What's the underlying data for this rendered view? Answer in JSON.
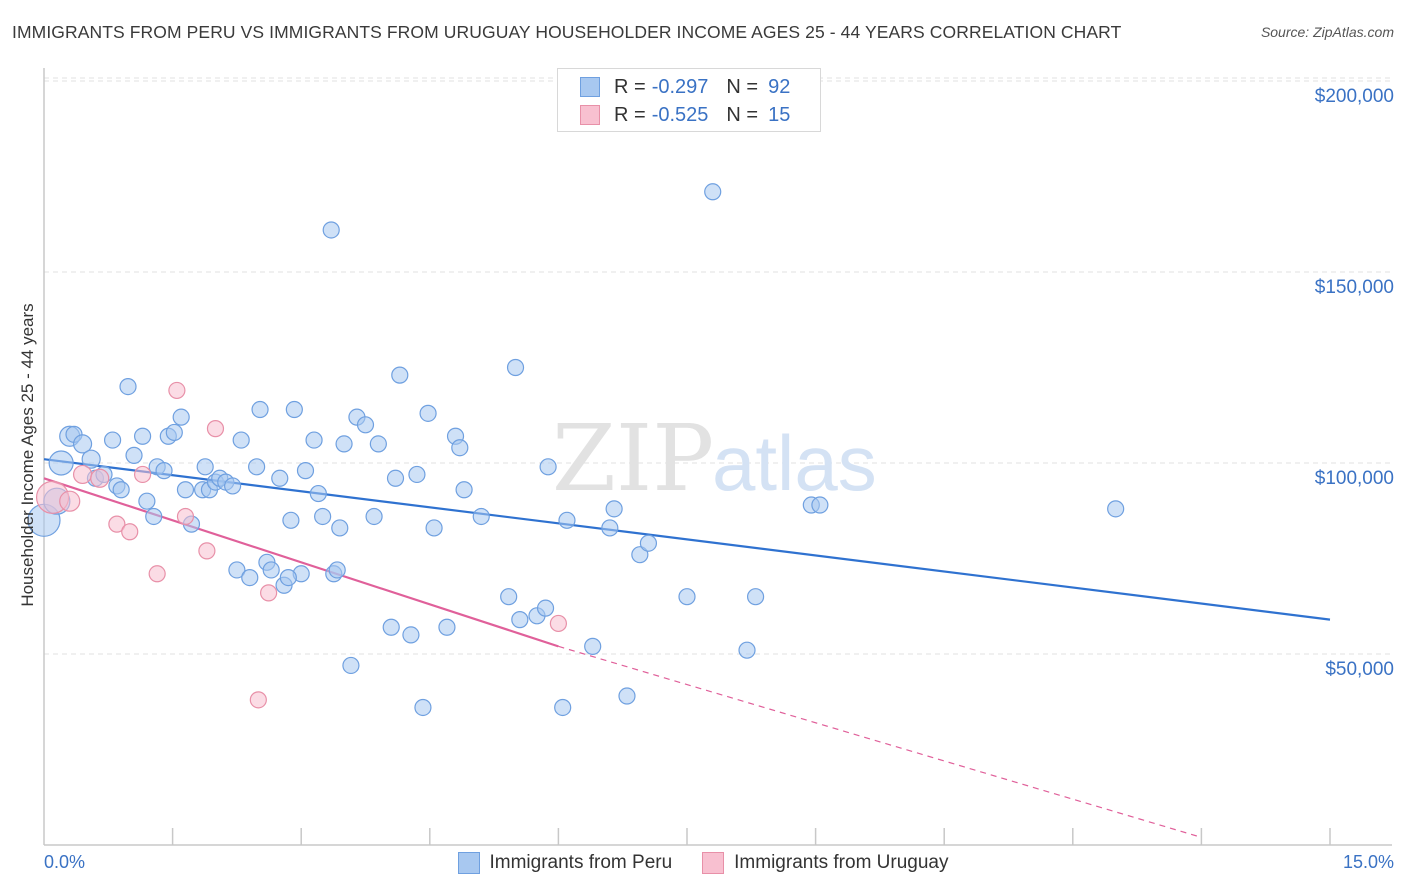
{
  "header": {
    "title": "IMMIGRANTS FROM PERU VS IMMIGRANTS FROM URUGUAY HOUSEHOLDER INCOME AGES 25 - 44 YEARS CORRELATION CHART",
    "source": "Source: ZipAtlas.com"
  },
  "watermark": {
    "zip": "ZIP",
    "atlas": "atlas"
  },
  "legend_top": {
    "rows": [
      {
        "r_label": "R =",
        "r_value": "-0.297",
        "n_label": "N =",
        "n_value": "92",
        "color": "#a8c8f0",
        "border": "#6fa0e0"
      },
      {
        "r_label": "R =",
        "r_value": "-0.525",
        "n_label": "N =",
        "n_value": "15",
        "color": "#f8c0d0",
        "border": "#e890a8"
      }
    ]
  },
  "legend_bottom": {
    "items": [
      {
        "label": "Immigrants from Peru",
        "color": "#a8c8f0",
        "border": "#6fa0e0"
      },
      {
        "label": "Immigrants from Uruguay",
        "color": "#f8c0d0",
        "border": "#e890a8"
      }
    ]
  },
  "chart_data": {
    "type": "scatter",
    "title": "IMMIGRANTS FROM PERU VS IMMIGRANTS FROM URUGUAY HOUSEHOLDER INCOME AGES 25 - 44 YEARS CORRELATION CHART",
    "xlabel": "",
    "ylabel": "Householder Income Ages 25 - 44 years",
    "xlim": [
      0,
      15
    ],
    "ylim": [
      0,
      205000
    ],
    "x_tick_labels": [
      "0.0%",
      "15.0%"
    ],
    "y_ticks": [
      50000,
      100000,
      150000,
      200000
    ],
    "y_tick_labels": [
      "$50,000",
      "$100,000",
      "$150,000",
      "$200,000"
    ],
    "grid": true,
    "series": [
      {
        "name": "Immigrants from Peru",
        "color": "#a8c8f0",
        "stroke": "#6fa0e0",
        "trend_color": "#2f72d0",
        "trend": {
          "x0": 0.0,
          "y0": 101000,
          "x1": 15.0,
          "y1": 59000
        },
        "points": [
          {
            "x": 0.0,
            "y": 85000,
            "s": 16
          },
          {
            "x": 0.15,
            "y": 90000,
            "s": 13
          },
          {
            "x": 0.2,
            "y": 100000,
            "s": 12
          },
          {
            "x": 0.3,
            "y": 107000,
            "s": 10
          },
          {
            "x": 0.35,
            "y": 107500,
            "s": 8
          },
          {
            "x": 0.45,
            "y": 105000,
            "s": 9
          },
          {
            "x": 0.55,
            "y": 101000,
            "s": 9
          },
          {
            "x": 0.6,
            "y": 96000,
            "s": 8
          },
          {
            "x": 0.7,
            "y": 97000,
            "s": 8
          },
          {
            "x": 0.8,
            "y": 106000,
            "s": 8
          },
          {
            "x": 0.85,
            "y": 94000,
            "s": 8
          },
          {
            "x": 0.9,
            "y": 93000,
            "s": 8
          },
          {
            "x": 0.98,
            "y": 120000,
            "s": 8
          },
          {
            "x": 1.05,
            "y": 102000,
            "s": 8
          },
          {
            "x": 1.15,
            "y": 107000,
            "s": 8
          },
          {
            "x": 1.2,
            "y": 90000,
            "s": 8
          },
          {
            "x": 1.28,
            "y": 86000,
            "s": 8
          },
          {
            "x": 1.32,
            "y": 99000,
            "s": 8
          },
          {
            "x": 1.4,
            "y": 98000,
            "s": 8
          },
          {
            "x": 1.45,
            "y": 107000,
            "s": 8
          },
          {
            "x": 1.52,
            "y": 108000,
            "s": 8
          },
          {
            "x": 1.6,
            "y": 112000,
            "s": 8
          },
          {
            "x": 1.65,
            "y": 93000,
            "s": 8
          },
          {
            "x": 1.72,
            "y": 84000,
            "s": 8
          },
          {
            "x": 1.85,
            "y": 93000,
            "s": 8
          },
          {
            "x": 1.88,
            "y": 99000,
            "s": 8
          },
          {
            "x": 1.93,
            "y": 93000,
            "s": 8
          },
          {
            "x": 2.0,
            "y": 95000,
            "s": 8
          },
          {
            "x": 2.05,
            "y": 96000,
            "s": 8
          },
          {
            "x": 2.12,
            "y": 95000,
            "s": 8
          },
          {
            "x": 2.2,
            "y": 94000,
            "s": 8
          },
          {
            "x": 2.25,
            "y": 72000,
            "s": 8
          },
          {
            "x": 2.3,
            "y": 106000,
            "s": 8
          },
          {
            "x": 2.4,
            "y": 70000,
            "s": 8
          },
          {
            "x": 2.48,
            "y": 99000,
            "s": 8
          },
          {
            "x": 2.52,
            "y": 114000,
            "s": 8
          },
          {
            "x": 2.6,
            "y": 74000,
            "s": 8
          },
          {
            "x": 2.65,
            "y": 72000,
            "s": 8
          },
          {
            "x": 2.75,
            "y": 96000,
            "s": 8
          },
          {
            "x": 2.8,
            "y": 68000,
            "s": 8
          },
          {
            "x": 2.88,
            "y": 85000,
            "s": 8
          },
          {
            "x": 2.92,
            "y": 114000,
            "s": 8
          },
          {
            "x": 3.0,
            "y": 71000,
            "s": 8
          },
          {
            "x": 3.05,
            "y": 98000,
            "s": 8
          },
          {
            "x": 3.15,
            "y": 106000,
            "s": 8
          },
          {
            "x": 3.2,
            "y": 92000,
            "s": 8
          },
          {
            "x": 3.25,
            "y": 86000,
            "s": 8
          },
          {
            "x": 3.35,
            "y": 161000,
            "s": 8
          },
          {
            "x": 3.38,
            "y": 71000,
            "s": 8
          },
          {
            "x": 3.45,
            "y": 83000,
            "s": 8
          },
          {
            "x": 3.5,
            "y": 105000,
            "s": 8
          },
          {
            "x": 3.58,
            "y": 47000,
            "s": 8
          },
          {
            "x": 3.65,
            "y": 112000,
            "s": 8
          },
          {
            "x": 3.75,
            "y": 110000,
            "s": 8
          },
          {
            "x": 3.85,
            "y": 86000,
            "s": 8
          },
          {
            "x": 3.9,
            "y": 105000,
            "s": 8
          },
          {
            "x": 4.05,
            "y": 57000,
            "s": 8
          },
          {
            "x": 4.1,
            "y": 96000,
            "s": 8
          },
          {
            "x": 4.15,
            "y": 123000,
            "s": 8
          },
          {
            "x": 4.28,
            "y": 55000,
            "s": 8
          },
          {
            "x": 4.35,
            "y": 97000,
            "s": 8
          },
          {
            "x": 4.42,
            "y": 36000,
            "s": 8
          },
          {
            "x": 4.48,
            "y": 113000,
            "s": 8
          },
          {
            "x": 4.55,
            "y": 83000,
            "s": 8
          },
          {
            "x": 4.7,
            "y": 57000,
            "s": 8
          },
          {
            "x": 4.8,
            "y": 107000,
            "s": 8
          },
          {
            "x": 4.85,
            "y": 104000,
            "s": 8
          },
          {
            "x": 4.9,
            "y": 93000,
            "s": 8
          },
          {
            "x": 5.1,
            "y": 86000,
            "s": 8
          },
          {
            "x": 5.42,
            "y": 65000,
            "s": 8
          },
          {
            "x": 5.5,
            "y": 125000,
            "s": 8
          },
          {
            "x": 5.55,
            "y": 59000,
            "s": 8
          },
          {
            "x": 5.75,
            "y": 60000,
            "s": 8
          },
          {
            "x": 5.85,
            "y": 62000,
            "s": 8
          },
          {
            "x": 5.88,
            "y": 99000,
            "s": 8
          },
          {
            "x": 6.05,
            "y": 36000,
            "s": 8
          },
          {
            "x": 6.1,
            "y": 85000,
            "s": 8
          },
          {
            "x": 6.4,
            "y": 52000,
            "s": 8
          },
          {
            "x": 6.6,
            "y": 83000,
            "s": 8
          },
          {
            "x": 6.65,
            "y": 88000,
            "s": 8
          },
          {
            "x": 6.8,
            "y": 39000,
            "s": 8
          },
          {
            "x": 6.95,
            "y": 76000,
            "s": 8
          },
          {
            "x": 7.05,
            "y": 79000,
            "s": 8
          },
          {
            "x": 7.5,
            "y": 65000,
            "s": 8
          },
          {
            "x": 7.8,
            "y": 171000,
            "s": 8
          },
          {
            "x": 8.2,
            "y": 51000,
            "s": 8
          },
          {
            "x": 8.3,
            "y": 65000,
            "s": 8
          },
          {
            "x": 8.95,
            "y": 89000,
            "s": 8
          },
          {
            "x": 9.05,
            "y": 89000,
            "s": 8
          },
          {
            "x": 12.5,
            "y": 88000,
            "s": 8
          },
          {
            "x": 3.42,
            "y": 72000,
            "s": 8
          },
          {
            "x": 2.85,
            "y": 70000,
            "s": 8
          }
        ]
      },
      {
        "name": "Immigrants from Uruguay",
        "color": "#f8c0d0",
        "stroke": "#e890a8",
        "trend_color": "#e0609a",
        "trend": {
          "x0": 0.0,
          "y0": 96000,
          "x1": 6.0,
          "y1": 52000
        },
        "trend_dashed": {
          "x0": 6.0,
          "y0": 52000,
          "x1": 13.5,
          "y1": 2000
        },
        "points": [
          {
            "x": 0.1,
            "y": 91000,
            "s": 16
          },
          {
            "x": 0.3,
            "y": 90000,
            "s": 10
          },
          {
            "x": 0.45,
            "y": 97000,
            "s": 9
          },
          {
            "x": 0.65,
            "y": 96000,
            "s": 9
          },
          {
            "x": 0.85,
            "y": 84000,
            "s": 8
          },
          {
            "x": 1.0,
            "y": 82000,
            "s": 8
          },
          {
            "x": 1.15,
            "y": 97000,
            "s": 8
          },
          {
            "x": 1.32,
            "y": 71000,
            "s": 8
          },
          {
            "x": 1.55,
            "y": 119000,
            "s": 8
          },
          {
            "x": 1.65,
            "y": 86000,
            "s": 8
          },
          {
            "x": 1.9,
            "y": 77000,
            "s": 8
          },
          {
            "x": 2.0,
            "y": 109000,
            "s": 8
          },
          {
            "x": 2.5,
            "y": 38000,
            "s": 8
          },
          {
            "x": 2.62,
            "y": 66000,
            "s": 8
          },
          {
            "x": 6.0,
            "y": 58000,
            "s": 8
          }
        ]
      }
    ]
  }
}
